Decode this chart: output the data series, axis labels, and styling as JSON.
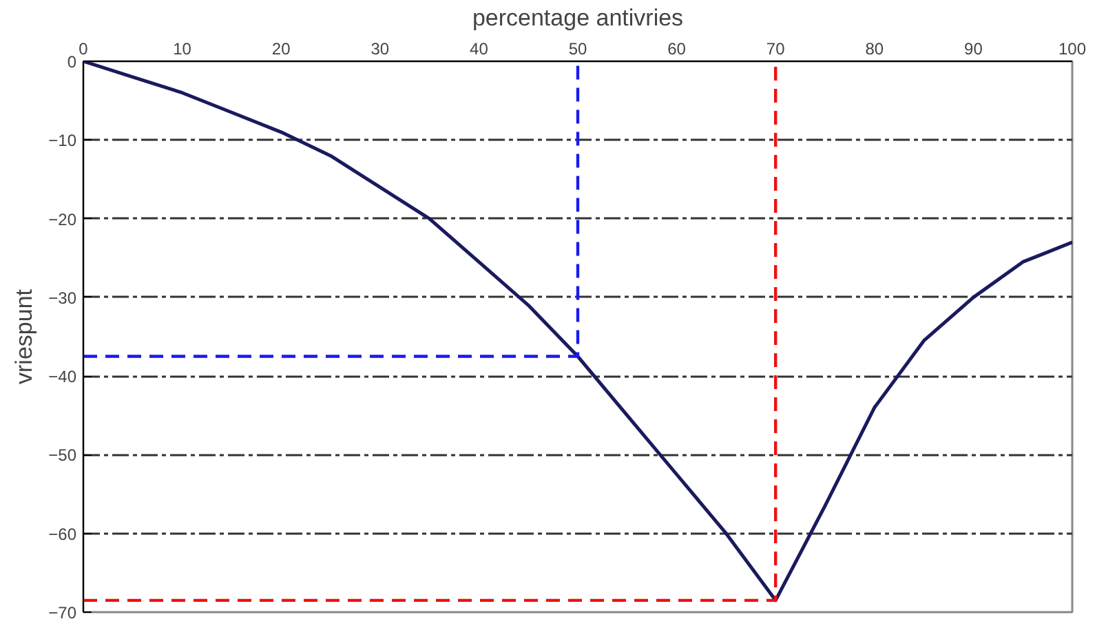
{
  "chart_data": {
    "type": "line",
    "xlabel": "percentage antivries",
    "ylabel": "vriespunt",
    "xlim": [
      0,
      100
    ],
    "ylim": [
      -70,
      0
    ],
    "xticks": [
      0,
      10,
      20,
      30,
      40,
      50,
      60,
      70,
      80,
      90,
      100
    ],
    "yticks": [
      0,
      -10,
      -20,
      -30,
      -40,
      -50,
      -60,
      -70
    ],
    "grid": "y",
    "marker": "none",
    "series": [
      {
        "color": "#1a1a5e",
        "line_style": "solid",
        "x": [
          0,
          5,
          10,
          15,
          20,
          25,
          30,
          35,
          40,
          45,
          50,
          55,
          60,
          65,
          70,
          75,
          80,
          85,
          90,
          95,
          100
        ],
        "values": [
          0,
          -2,
          -4,
          -6.5,
          -9,
          -12,
          -16,
          -20,
          -25.5,
          -31,
          -37.5,
          -45,
          -52.5,
          -60,
          -68.5,
          -56.5,
          -44,
          -35.5,
          -30,
          -25.5,
          -23
        ]
      },
      {
        "color": "#1a1aee",
        "line_style": "dashed",
        "x": [
          0,
          50,
          50
        ],
        "values": [
          -37.5,
          -37.5,
          0
        ]
      },
      {
        "color": "#ee1111",
        "line_style": "dashed",
        "x": [
          0,
          70,
          70
        ],
        "values": [
          -68.5,
          -68.5,
          0
        ]
      }
    ]
  }
}
